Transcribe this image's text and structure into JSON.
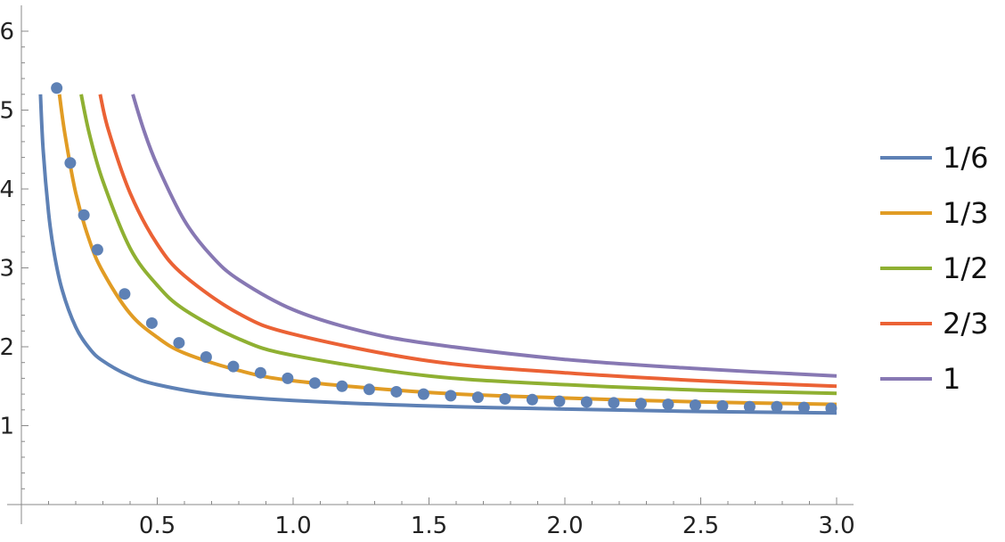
{
  "chart_data": {
    "type": "line",
    "xlim": [
      0,
      3.0
    ],
    "ylim": [
      0,
      6.2
    ],
    "x_ticks": [
      "0.5",
      "1.0",
      "1.5",
      "2.0",
      "2.5",
      "3.0"
    ],
    "y_ticks": [
      "1",
      "2",
      "3",
      "4",
      "5",
      "6"
    ],
    "grid": false,
    "legend_position": "right",
    "series": [
      {
        "name": "1/6",
        "color": "#5E81B5",
        "x": [
          0.07,
          0.08,
          0.1,
          0.12,
          0.15,
          0.2,
          0.25,
          0.3,
          0.4,
          0.5,
          0.7,
          1.0,
          1.5,
          2.0,
          2.5,
          3.0
        ],
        "y": [
          5.2,
          4.5,
          3.7,
          3.2,
          2.72,
          2.25,
          1.98,
          1.82,
          1.63,
          1.52,
          1.4,
          1.32,
          1.25,
          1.21,
          1.18,
          1.16
        ]
      },
      {
        "name": "1/3",
        "color": "#E19C24",
        "x": [
          0.14,
          0.16,
          0.2,
          0.25,
          0.3,
          0.4,
          0.5,
          0.6,
          0.8,
          1.0,
          1.5,
          2.0,
          2.5,
          3.0
        ],
        "y": [
          5.2,
          4.7,
          3.95,
          3.35,
          2.95,
          2.42,
          2.12,
          1.92,
          1.7,
          1.57,
          1.42,
          1.35,
          1.3,
          1.27
        ]
      },
      {
        "name": "1/2",
        "color": "#8FB032",
        "x": [
          0.22,
          0.25,
          0.3,
          0.4,
          0.5,
          0.6,
          0.8,
          1.0,
          1.5,
          2.0,
          2.5,
          3.0
        ],
        "y": [
          5.2,
          4.7,
          4.1,
          3.25,
          2.78,
          2.47,
          2.1,
          1.89,
          1.63,
          1.52,
          1.45,
          1.41
        ]
      },
      {
        "name": "2/3",
        "color": "#EB6235",
        "x": [
          0.29,
          0.32,
          0.4,
          0.5,
          0.6,
          0.8,
          1.0,
          1.5,
          2.0,
          2.5,
          3.0
        ],
        "y": [
          5.2,
          4.75,
          3.95,
          3.3,
          2.9,
          2.42,
          2.16,
          1.82,
          1.67,
          1.57,
          1.5
        ]
      },
      {
        "name": "1",
        "color": "#8778B3",
        "x": [
          0.41,
          0.45,
          0.5,
          0.6,
          0.7,
          0.8,
          1.0,
          1.25,
          1.5,
          2.0,
          2.5,
          3.0
        ],
        "y": [
          5.2,
          4.75,
          4.3,
          3.6,
          3.15,
          2.85,
          2.47,
          2.2,
          2.04,
          1.84,
          1.72,
          1.63
        ]
      },
      {
        "name": "",
        "type": "scatter",
        "color": "#5E81B5",
        "x": [
          0.13,
          0.18,
          0.23,
          0.28,
          0.38,
          0.48,
          0.58,
          0.68,
          0.78,
          0.88,
          0.98,
          1.08,
          1.18,
          1.28,
          1.38,
          1.48,
          1.58,
          1.68,
          1.78,
          1.88,
          1.98,
          2.08,
          2.18,
          2.28,
          2.38,
          2.48,
          2.58,
          2.68,
          2.78,
          2.88,
          2.98
        ],
        "y": [
          5.28,
          4.33,
          3.67,
          3.23,
          2.67,
          2.3,
          2.05,
          1.87,
          1.75,
          1.67,
          1.6,
          1.54,
          1.5,
          1.46,
          1.43,
          1.4,
          1.38,
          1.36,
          1.34,
          1.33,
          1.31,
          1.3,
          1.29,
          1.28,
          1.27,
          1.26,
          1.25,
          1.24,
          1.24,
          1.23,
          1.22
        ]
      }
    ]
  }
}
